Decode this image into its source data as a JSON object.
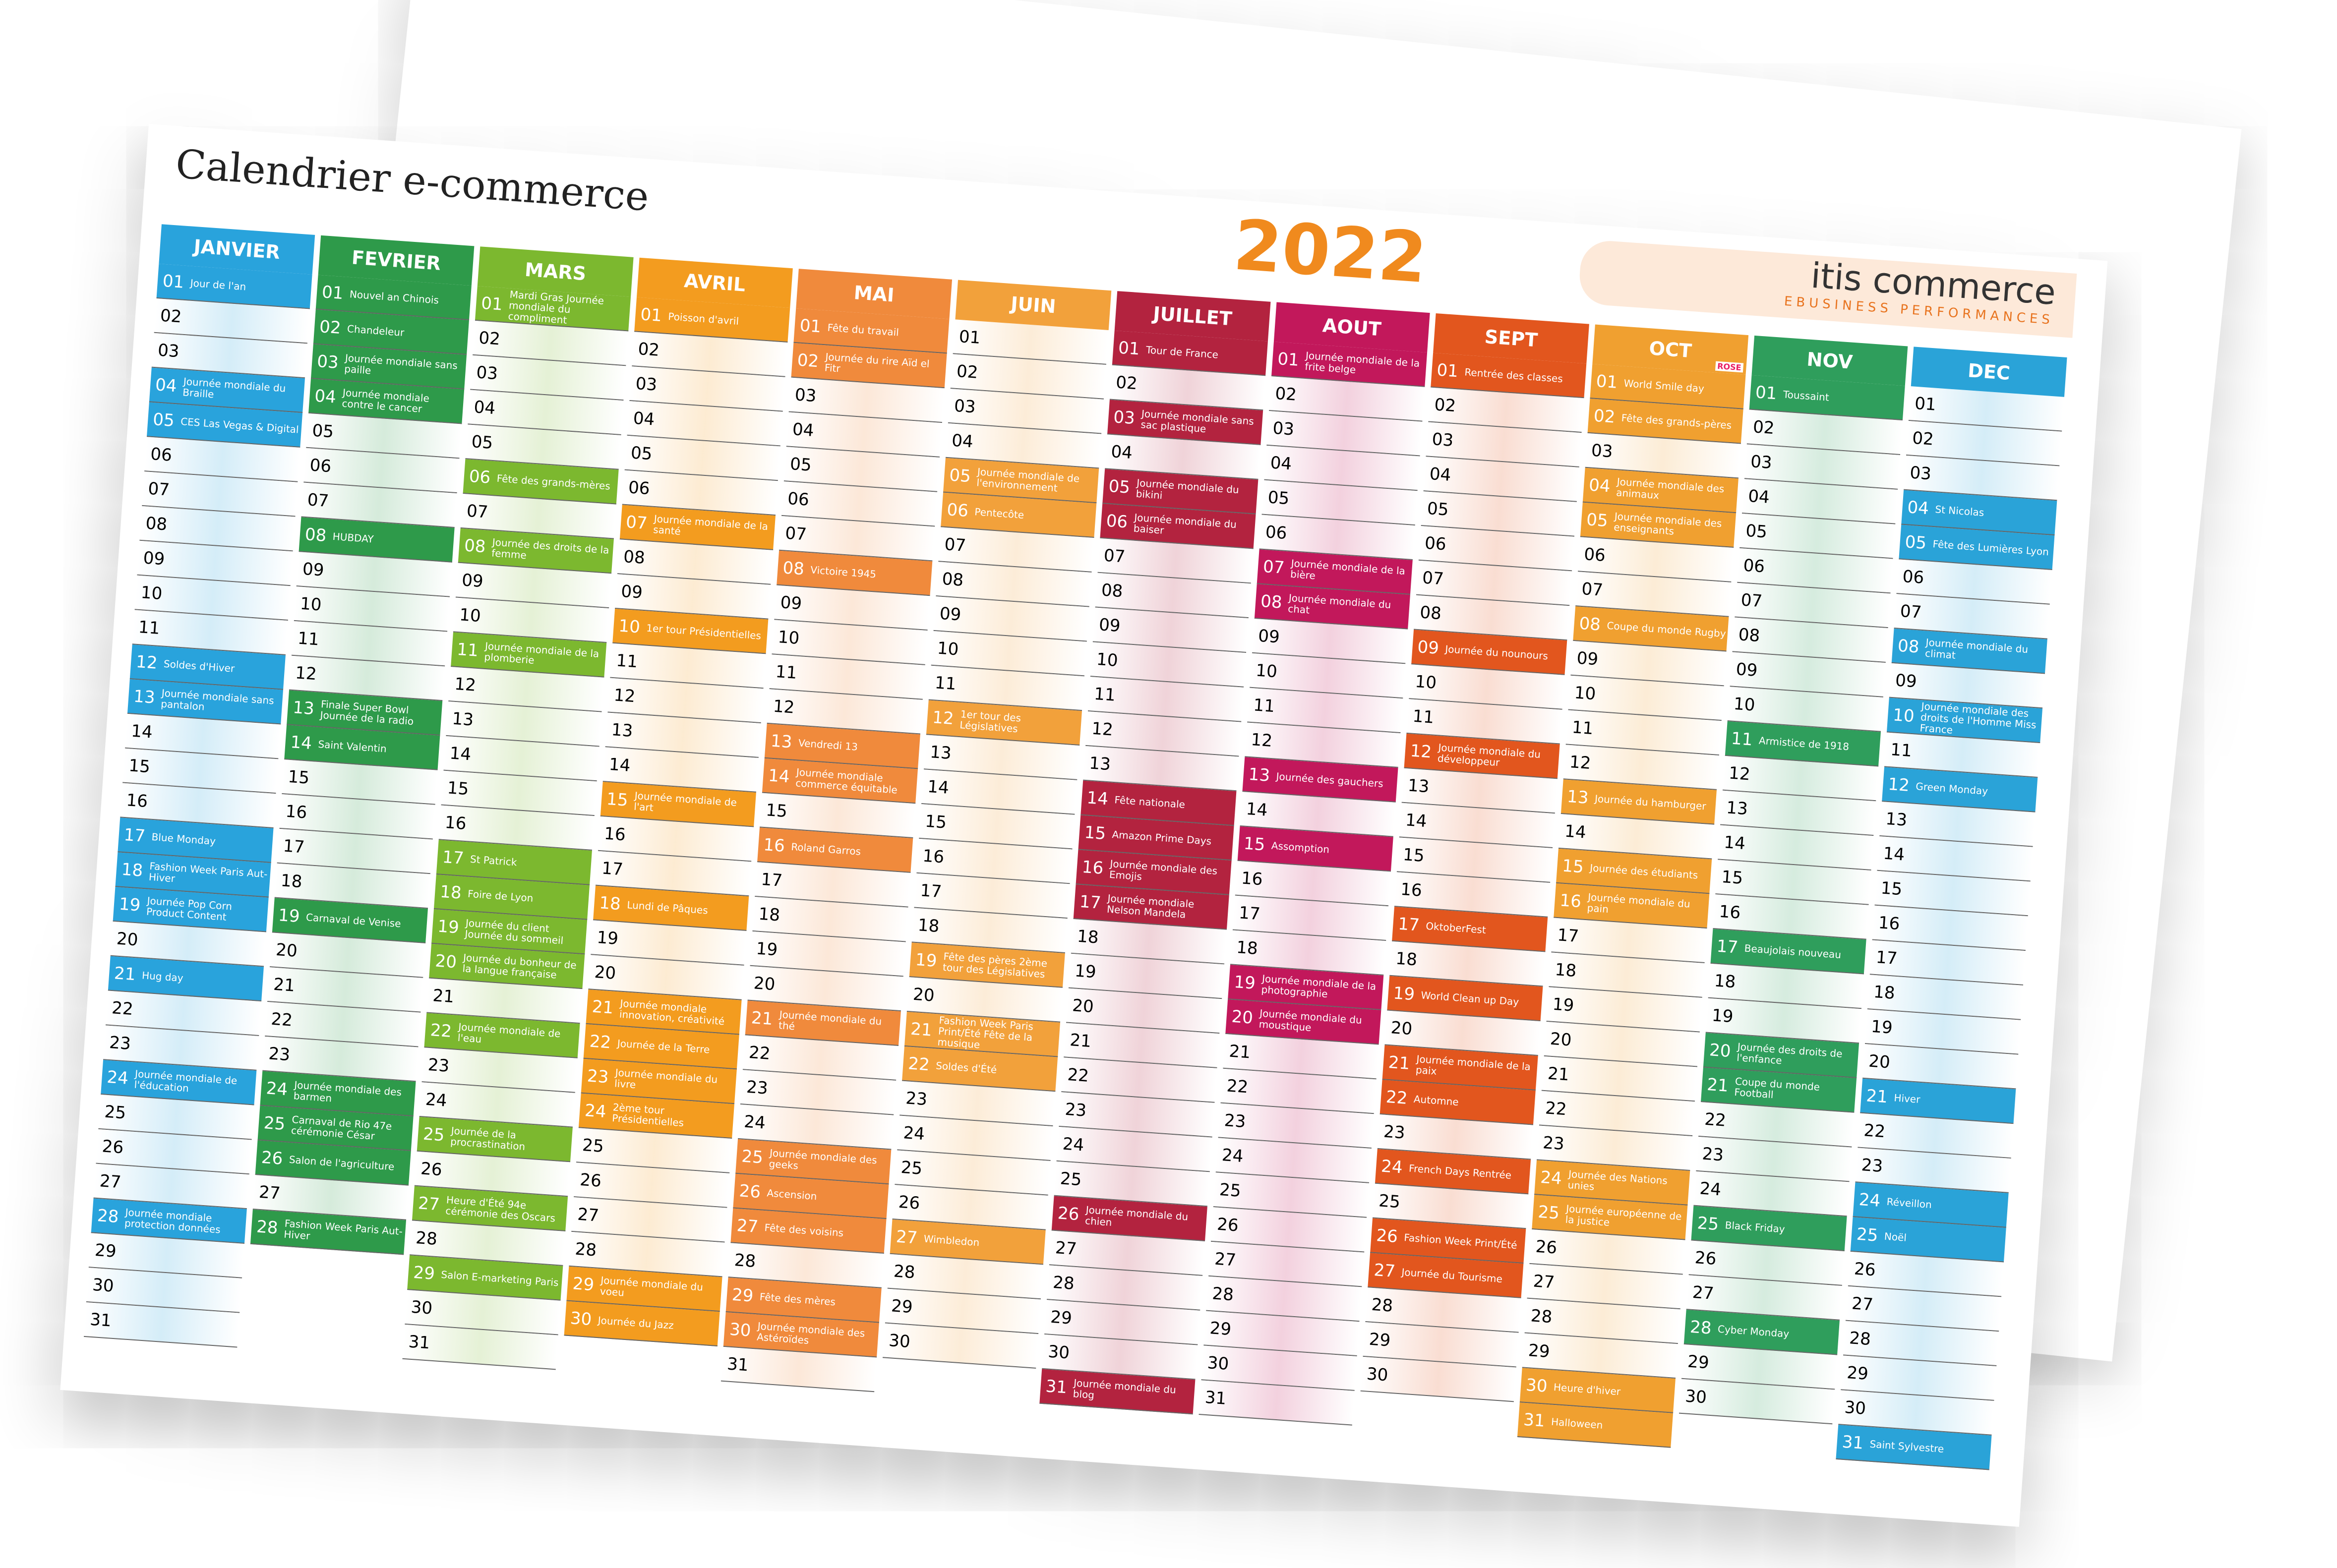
{
  "title": "Calendrier e-commerce",
  "year": "2022",
  "brand": {
    "name": "itis commerce",
    "tagline": "EBUSINESS PERFORMANCES"
  },
  "months": [
    {
      "name": "JANVIER",
      "color": "#29a3dc",
      "days": [
        [
          "01",
          "Jour de l'an"
        ],
        "02",
        "03",
        [
          "04",
          "Journée mondiale du Braille"
        ],
        [
          "05",
          "CES Las Vegas & Digital"
        ],
        "06",
        "07",
        "08",
        "09",
        "10",
        "11",
        [
          "12",
          "Soldes d'Hiver"
        ],
        [
          "13",
          "Journée mondiale sans pantalon"
        ],
        "14",
        "15",
        "16",
        [
          "17",
          "Blue Monday"
        ],
        [
          "18",
          "Fashion Week Paris Aut-Hiver"
        ],
        [
          "19",
          "Journée Pop Corn Product Content"
        ],
        "20",
        [
          "21",
          "Hug day"
        ],
        "22",
        "23",
        [
          "24",
          "Journée mondiale de l'éducation"
        ],
        "25",
        "26",
        "27",
        [
          "28",
          "Journée mondiale protection données"
        ],
        "29",
        "30",
        "31"
      ]
    },
    {
      "name": "FEVRIER",
      "color": "#2e9a4a",
      "days": [
        [
          "01",
          "Nouvel an Chinois"
        ],
        [
          "02",
          "Chandeleur"
        ],
        [
          "03",
          "Journée mondiale sans paille"
        ],
        [
          "04",
          "Journée mondiale contre le cancer"
        ],
        "05",
        "06",
        "07",
        [
          "08",
          "HUBDAY"
        ],
        "09",
        "10",
        "11",
        "12",
        [
          "13",
          "Finale Super Bowl Journée de la radio"
        ],
        [
          "14",
          "Saint Valentin"
        ],
        "15",
        "16",
        "17",
        "18",
        [
          "19",
          "Carnaval de Venise"
        ],
        "20",
        "21",
        "22",
        "23",
        [
          "24",
          "Journée mondiale des barmen"
        ],
        [
          "25",
          "Carnaval de Rio 47e cérémonie César"
        ],
        [
          "26",
          "Salon de l'agriculture"
        ],
        "27",
        [
          "28",
          "Fashion Week Paris Aut-Hiver"
        ]
      ]
    },
    {
      "name": "MARS",
      "color": "#7cb82f",
      "days": [
        [
          "01",
          "Mardi Gras Journée mondiale du compliment"
        ],
        "02",
        "03",
        "04",
        "05",
        [
          "06",
          "Fête des grands-mères"
        ],
        "07",
        [
          "08",
          "Journée des droits de la femme"
        ],
        "09",
        "10",
        [
          "11",
          "Journée mondiale de la plomberie"
        ],
        "12",
        "13",
        "14",
        "15",
        "16",
        [
          "17",
          "St Patrick"
        ],
        [
          "18",
          "Foire de Lyon"
        ],
        [
          "19",
          "Journée du client Journée du sommeil"
        ],
        [
          "20",
          "Journée du bonheur de la langue française"
        ],
        "21",
        [
          "22",
          "Journée mondiale de l'eau"
        ],
        "23",
        "24",
        [
          "25",
          "Journée de la procrastination"
        ],
        "26",
        [
          "27",
          "Heure d'Été 94e cérémonie des Oscars"
        ],
        "28",
        [
          "29",
          "Salon E-marketing Paris"
        ],
        "30",
        "31"
      ]
    },
    {
      "name": "AVRIL",
      "color": "#f39c1f",
      "days": [
        [
          "01",
          "Poisson d'avril"
        ],
        "02",
        "03",
        "04",
        "05",
        "06",
        [
          "07",
          "Journée mondiale de la santé"
        ],
        "08",
        "09",
        [
          "10",
          "1er tour Présidentielles"
        ],
        "11",
        "12",
        "13",
        "14",
        [
          "15",
          "Journée mondiale de l'art"
        ],
        "16",
        "17",
        [
          "18",
          "Lundi de Pâques"
        ],
        "19",
        "20",
        [
          "21",
          "Journée mondiale innovation, créativité"
        ],
        [
          "22",
          "Journée de la Terre"
        ],
        [
          "23",
          "Journée mondiale du livre"
        ],
        [
          "24",
          "2ème tour Présidentielles"
        ],
        "25",
        "26",
        "27",
        "28",
        [
          "29",
          "Journée mondiale du voeu"
        ],
        [
          "30",
          "Journée du Jazz"
        ]
      ]
    },
    {
      "name": "MAI",
      "color": "#f08a3c",
      "days": [
        [
          "01",
          "Fête du travail"
        ],
        [
          "02",
          "Journée du rire Aïd el Fitr"
        ],
        "03",
        "04",
        "05",
        "06",
        "07",
        [
          "08",
          "Victoire 1945"
        ],
        "09",
        "10",
        "11",
        "12",
        [
          "13",
          "Vendredi 13"
        ],
        [
          "14",
          "Journée mondiale commerce équitable"
        ],
        "15",
        [
          "16",
          "Roland Garros"
        ],
        "17",
        "18",
        "19",
        "20",
        [
          "21",
          "Journée mondiale du thé"
        ],
        "22",
        "23",
        "24",
        [
          "25",
          "Journée mondiale des geeks"
        ],
        [
          "26",
          "Ascension"
        ],
        [
          "27",
          "Fête des voisins"
        ],
        "28",
        [
          "29",
          "Fête des mères"
        ],
        [
          "30",
          "Journée mondiale des Astéroïdes"
        ],
        "31"
      ]
    },
    {
      "name": "JUIN",
      "color": "#f2a13b",
      "days": [
        "01",
        "02",
        "03",
        "04",
        [
          "05",
          "Journée mondiale de l'environnement"
        ],
        [
          "06",
          "Pentecôte"
        ],
        "07",
        "08",
        "09",
        "10",
        "11",
        [
          "12",
          "1er tour des Législatives"
        ],
        "13",
        "14",
        "15",
        "16",
        "17",
        "18",
        [
          "19",
          "Fête des pères 2ème tour des Législatives"
        ],
        "20",
        [
          "21",
          "Fashion Week Paris Print/Été Fête de la musique"
        ],
        [
          "22",
          "Soldes d'Été"
        ],
        "23",
        "24",
        "25",
        "26",
        [
          "27",
          "Wimbledon"
        ],
        "28",
        "29",
        "30"
      ]
    },
    {
      "name": "JUILLET",
      "color": "#b3233f",
      "days": [
        [
          "01",
          "Tour de France"
        ],
        "02",
        [
          "03",
          "Journée mondiale sans sac plastique"
        ],
        "04",
        [
          "05",
          "Journée mondiale du bikini"
        ],
        [
          "06",
          "Journée mondiale du baiser"
        ],
        "07",
        "08",
        "09",
        "10",
        "11",
        "12",
        "13",
        [
          "14",
          "Fête nationale"
        ],
        [
          "15",
          "Amazon Prime Days"
        ],
        [
          "16",
          "Journée mondiale des Emojis"
        ],
        [
          "17",
          "Journée mondiale Nelson Mandela"
        ],
        "18",
        "19",
        "20",
        "21",
        "22",
        "23",
        "24",
        "25",
        [
          "26",
          "Journée mondiale du chien"
        ],
        "27",
        "28",
        "29",
        "30",
        [
          "31",
          "Journée mondiale du blog"
        ]
      ]
    },
    {
      "name": "AOUT",
      "color": "#c2185b",
      "days": [
        [
          "01",
          "Journée mondiale de la frite belge"
        ],
        "02",
        "03",
        "04",
        "05",
        "06",
        [
          "07",
          "Journée mondiale de la bière"
        ],
        [
          "08",
          "Journée mondiale du chat"
        ],
        "09",
        "10",
        "11",
        "12",
        [
          "13",
          "Journée des gauchers"
        ],
        "14",
        [
          "15",
          "Assomption"
        ],
        "16",
        "17",
        "18",
        [
          "19",
          "Journée mondiale de la photographie"
        ],
        [
          "20",
          "Journée mondiale du moustique"
        ],
        "21",
        "22",
        "23",
        "24",
        "25",
        "26",
        "27",
        "28",
        "29",
        "30",
        "31"
      ]
    },
    {
      "name": "SEPT",
      "color": "#e2561e",
      "days": [
        [
          "01",
          "Rentrée des classes"
        ],
        "02",
        "03",
        "04",
        "05",
        "06",
        "07",
        "08",
        [
          "09",
          "Journée du nounours"
        ],
        "10",
        "11",
        [
          "12",
          "Journée mondiale du développeur"
        ],
        "13",
        "14",
        "15",
        "16",
        [
          "17",
          "OktoberFest"
        ],
        "18",
        [
          "19",
          "World Clean up Day"
        ],
        "20",
        [
          "21",
          "Journée mondiale de la paix"
        ],
        [
          "22",
          "Automne"
        ],
        "23",
        [
          "24",
          "French Days Rentrée"
        ],
        "25",
        [
          "26",
          "Fashion Week Print/Été"
        ],
        [
          "27",
          "Journée du Tourisme"
        ],
        "28",
        "29",
        "30"
      ]
    },
    {
      "name": "OCT",
      "note": "ROSE",
      "color": "#f0a030",
      "days": [
        [
          "01",
          "World Smile day"
        ],
        [
          "02",
          "Fête des grands-pères"
        ],
        "03",
        [
          "04",
          "Journée mondiale des animaux"
        ],
        [
          "05",
          "Journée mondiale des enseignants"
        ],
        "06",
        "07",
        [
          "08",
          "Coupe du monde Rugby"
        ],
        "09",
        "10",
        "11",
        "12",
        [
          "13",
          "Journée du hamburger"
        ],
        "14",
        [
          "15",
          "Journée des étudiants"
        ],
        [
          "16",
          "Journée mondiale du pain"
        ],
        "17",
        "18",
        "19",
        "20",
        "21",
        "22",
        "23",
        [
          "24",
          "Journée des Nations unies"
        ],
        [
          "25",
          "Journée européenne de la justice"
        ],
        "26",
        "27",
        "28",
        "29",
        [
          "30",
          "Heure d'hiver"
        ],
        [
          "31",
          "Halloween"
        ]
      ]
    },
    {
      "name": "NOV",
      "color": "#2f9e5c",
      "days": [
        [
          "01",
          "Toussaint"
        ],
        "02",
        "03",
        "04",
        "05",
        "06",
        "07",
        "08",
        "09",
        "10",
        [
          "11",
          "Armistice de 1918"
        ],
        "12",
        "13",
        "14",
        "15",
        "16",
        [
          "17",
          "Beaujolais nouveau"
        ],
        "18",
        "19",
        [
          "20",
          "Journée des droits de l'enfance"
        ],
        [
          "21",
          "Coupe du monde Football"
        ],
        "22",
        "23",
        "24",
        [
          "25",
          "Black Friday"
        ],
        "26",
        "27",
        [
          "28",
          "Cyber Monday"
        ],
        "29",
        "30"
      ]
    },
    {
      "name": "DEC",
      "color": "#2aa3d8",
      "days": [
        "01",
        "02",
        "03",
        [
          "04",
          "St Nicolas"
        ],
        [
          "05",
          "Fête des Lumières Lyon"
        ],
        "06",
        "07",
        [
          "08",
          "Journée mondiale du climat"
        ],
        "09",
        [
          "10",
          "Journée mondiale des droits de l'Homme Miss France"
        ],
        "11",
        [
          "12",
          "Green Monday"
        ],
        "13",
        "14",
        "15",
        "16",
        "17",
        "18",
        "19",
        "20",
        [
          "21",
          "Hiver"
        ],
        "22",
        "23",
        [
          "24",
          "Réveillon"
        ],
        [
          "25",
          "Noël"
        ],
        "26",
        "27",
        "28",
        "29",
        "30",
        [
          "31",
          "Saint Sylvestre"
        ]
      ]
    }
  ]
}
